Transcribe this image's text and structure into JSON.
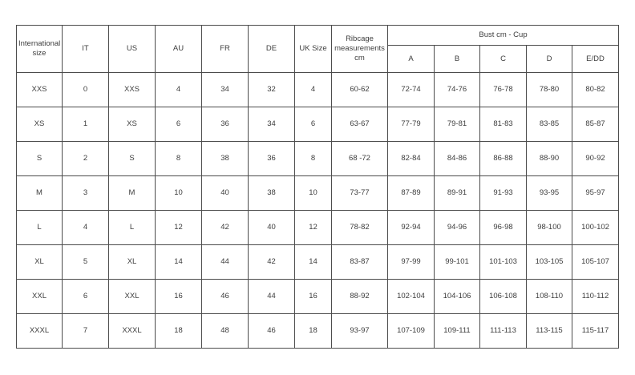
{
  "colors": {
    "border": "#4c4c4c",
    "text": "#3d3d3d",
    "background": "#ffffff"
  },
  "table": {
    "headers": {
      "international": "International size",
      "it": "IT",
      "us": "US",
      "au": "AU",
      "fr": "FR",
      "de": "DE",
      "uk": "UK Size",
      "ribcage": "Ribcage measurements cm",
      "bust_group": "Bust cm - Cup",
      "cups": [
        "A",
        "B",
        "C",
        "D",
        "E/DD"
      ]
    },
    "rows": [
      [
        "XXS",
        "0",
        "XXS",
        "4",
        "34",
        "32",
        "4",
        "60-62",
        "72-74",
        "74-76",
        "76-78",
        "78-80",
        "80-82"
      ],
      [
        "XS",
        "1",
        "XS",
        "6",
        "36",
        "34",
        "6",
        "63-67",
        "77-79",
        "79-81",
        "81-83",
        "83-85",
        "85-87"
      ],
      [
        "S",
        "2",
        "S",
        "8",
        "38",
        "36",
        "8",
        "68 -72",
        "82-84",
        "84-86",
        "86-88",
        "88-90",
        "90-92"
      ],
      [
        "M",
        "3",
        "M",
        "10",
        "40",
        "38",
        "10",
        "73-77",
        "87-89",
        "89-91",
        "91-93",
        "93-95",
        "95-97"
      ],
      [
        "L",
        "4",
        "L",
        "12",
        "42",
        "40",
        "12",
        "78-82",
        "92-94",
        "94-96",
        "96-98",
        "98-100",
        "100-102"
      ],
      [
        "XL",
        "5",
        "XL",
        "14",
        "44",
        "42",
        "14",
        "83-87",
        "97-99",
        "99-101",
        "101-103",
        "103-105",
        "105-107"
      ],
      [
        "XXL",
        "6",
        "XXL",
        "16",
        "46",
        "44",
        "16",
        "88-92",
        "102-104",
        "104-106",
        "106-108",
        "108-110",
        "110-112"
      ],
      [
        "XXXL",
        "7",
        "XXXL",
        "18",
        "48",
        "46",
        "18",
        "93-97",
        "107-109",
        "109-111",
        "111-113",
        "113-115",
        "115-117"
      ]
    ]
  }
}
